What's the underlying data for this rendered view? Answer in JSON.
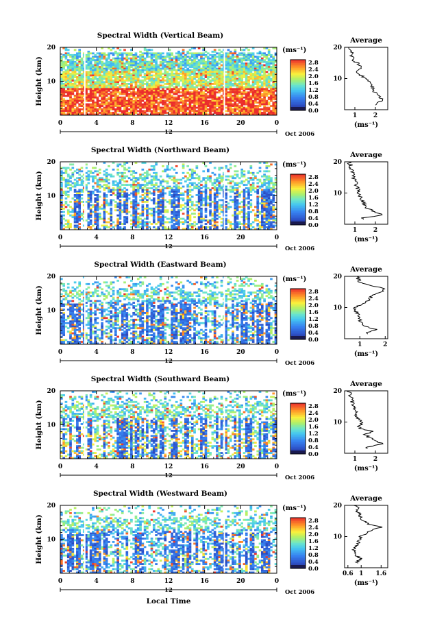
{
  "chart_data": [
    {
      "type": "heatmap",
      "title": "Spectral Width (Vertical Beam)",
      "ylabel": "Height (km)",
      "ylim": [
        0,
        20
      ],
      "y_ticks": [
        "20",
        "10"
      ],
      "x_ticks": [
        "0",
        "4",
        "8",
        "12",
        "16",
        "20",
        "0"
      ],
      "xlim": [
        0,
        24
      ],
      "date_mark": "12",
      "date_label": "Oct 2006",
      "colorbar": {
        "unit": "(ms⁻¹)",
        "ticks": [
          "2.8",
          "2.4",
          "2.0",
          "1.6",
          "1.2",
          "0.8",
          "0.4",
          "0.0"
        ],
        "range": [
          0,
          3.0
        ]
      },
      "intensity": "high",
      "average": {
        "title": "Average",
        "xlabel": "(ms⁻¹)",
        "x_ticks": [
          "1",
          "2"
        ],
        "xlim": [
          0.5,
          2.6
        ],
        "height_km": [
          2,
          3,
          4,
          5,
          6,
          8,
          10,
          12,
          14,
          16,
          18,
          19,
          20
        ],
        "values": [
          2.0,
          2.4,
          2.2,
          2.1,
          1.9,
          1.8,
          1.5,
          1.1,
          1.3,
          0.9,
          0.8,
          0.9,
          0.7
        ]
      }
    },
    {
      "type": "heatmap",
      "title": "Spectral Width (Northward Beam)",
      "ylabel": "Height (km)",
      "ylim": [
        0,
        20
      ],
      "y_ticks": [
        "20",
        "10"
      ],
      "x_ticks": [
        "0",
        "4",
        "8",
        "12",
        "16",
        "20",
        "0"
      ],
      "xlim": [
        0,
        24
      ],
      "date_mark": "12",
      "date_label": "Oct 2006",
      "colorbar": {
        "unit": "(ms⁻¹)",
        "ticks": [
          "2.8",
          "2.4",
          "2.0",
          "1.6",
          "1.2",
          "0.8",
          "0.4",
          "0.0"
        ],
        "range": [
          0,
          3.0
        ]
      },
      "intensity": "medium",
      "average": {
        "title": "Average",
        "xlabel": "(ms⁻¹)",
        "x_ticks": [
          "1",
          "2"
        ],
        "xlim": [
          0.5,
          2.6
        ],
        "height_km": [
          2,
          3,
          4,
          5,
          6,
          8,
          10,
          12,
          14,
          16,
          18,
          19,
          20
        ],
        "values": [
          1.4,
          2.3,
          2.0,
          1.6,
          1.5,
          1.3,
          1.2,
          1.1,
          1.0,
          0.9,
          0.8,
          0.8,
          0.7
        ]
      }
    },
    {
      "type": "heatmap",
      "title": "Spectral Width (Eastward Beam)",
      "ylabel": "Height (km)",
      "ylim": [
        0,
        20
      ],
      "y_ticks": [
        "20",
        "10"
      ],
      "x_ticks": [
        "0",
        "4",
        "8",
        "12",
        "16",
        "20",
        "0"
      ],
      "xlim": [
        0,
        24
      ],
      "date_mark": "12",
      "date_label": "Oct 2006",
      "colorbar": {
        "unit": "(ms⁻¹)",
        "ticks": [
          "2.8",
          "2.4",
          "2.0",
          "1.6",
          "1.2",
          "0.8",
          "0.4",
          "0.0"
        ],
        "range": [
          0,
          3.0
        ]
      },
      "intensity": "low",
      "average": {
        "title": "Average",
        "xlabel": "(ms⁻¹)",
        "x_ticks": [
          "1",
          "2"
        ],
        "xlim": [
          0.4,
          2.1
        ],
        "height_km": [
          2,
          3,
          4,
          6,
          8,
          10,
          12,
          14,
          15,
          16,
          17,
          18,
          20
        ],
        "values": [
          1.3,
          1.6,
          1.2,
          1.0,
          0.9,
          0.8,
          1.3,
          1.5,
          1.9,
          2.0,
          1.4,
          1.0,
          0.9
        ]
      }
    },
    {
      "type": "heatmap",
      "title": "Spectral Width (Southward Beam)",
      "ylabel": "Height (km)",
      "ylim": [
        0,
        20
      ],
      "y_ticks": [
        "20",
        "10"
      ],
      "x_ticks": [
        "0",
        "4",
        "8",
        "12",
        "16",
        "20",
        "0"
      ],
      "xlim": [
        0,
        24
      ],
      "date_mark": "12",
      "date_label": "Oct 2006",
      "colorbar": {
        "unit": "(ms⁻¹)",
        "ticks": [
          "2.8",
          "2.4",
          "2.0",
          "1.6",
          "1.2",
          "0.8",
          "0.4",
          "0.0"
        ],
        "range": [
          0,
          3.0
        ]
      },
      "intensity": "medium",
      "average": {
        "title": "Average",
        "xlabel": "(ms⁻¹)",
        "x_ticks": [
          "1",
          "2"
        ],
        "xlim": [
          0.5,
          2.6
        ],
        "height_km": [
          2,
          3,
          4,
          5,
          6,
          7,
          8,
          10,
          12,
          14,
          16,
          18,
          20
        ],
        "values": [
          1.6,
          2.4,
          2.0,
          1.7,
          1.5,
          1.9,
          1.2,
          1.3,
          1.1,
          1.0,
          0.9,
          0.8,
          0.7
        ]
      }
    },
    {
      "type": "heatmap",
      "title": "Spectral Width (Westward Beam)",
      "ylabel": "Height (km)",
      "ylim": [
        0,
        20
      ],
      "y_ticks": [
        "20",
        "10"
      ],
      "x_ticks": [
        "0",
        "4",
        "8",
        "12",
        "16",
        "20",
        "0"
      ],
      "xlim": [
        0,
        24
      ],
      "date_mark": "12",
      "date_label": "Oct 2006",
      "xlabel": "Local Time",
      "colorbar": {
        "unit": "(ms⁻¹)",
        "ticks": [
          "2.8",
          "2.4",
          "2.0",
          "1.6",
          "1.2",
          "0.8",
          "0.4",
          "0.0"
        ],
        "range": [
          0,
          3.0
        ]
      },
      "intensity": "low",
      "average": {
        "title": "Average",
        "xlabel": "(ms⁻¹)",
        "x_ticks": [
          "0.6",
          "1",
          "1.6"
        ],
        "xlim": [
          0.5,
          1.8
        ],
        "height_km": [
          2,
          3,
          4,
          6,
          8,
          10,
          12,
          13,
          14,
          16,
          18,
          19,
          20
        ],
        "values": [
          0.9,
          1.0,
          0.8,
          0.8,
          0.9,
          1.0,
          1.3,
          1.6,
          1.2,
          1.0,
          0.9,
          0.9,
          0.8
        ]
      }
    }
  ]
}
